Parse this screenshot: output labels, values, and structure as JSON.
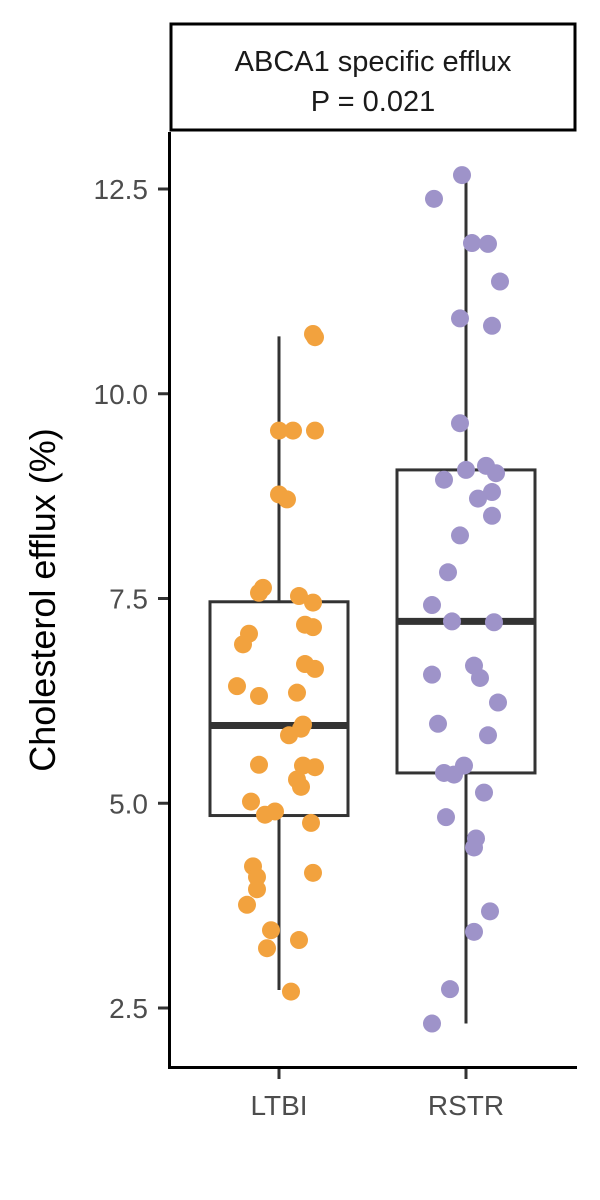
{
  "chart_data": {
    "type": "box",
    "strip": {
      "title": "ABCA1 specific efflux",
      "subtitle": "P = 0.021"
    },
    "ylabel": "Cholesterol efflux (%)",
    "xlabel": "",
    "ylim": [
      1.8,
      13.2
    ],
    "yticks": [
      {
        "value": 2.5,
        "label": "2.5"
      },
      {
        "value": 5.0,
        "label": "5.0"
      },
      {
        "value": 7.5,
        "label": "7.5"
      },
      {
        "value": 10.0,
        "label": "10.0"
      },
      {
        "value": 12.5,
        "label": "12.5"
      }
    ],
    "grid": false,
    "legend": "none",
    "categories": [
      "LTBI",
      "RSTR"
    ],
    "groups": [
      {
        "category": "LTBI",
        "color": "#F2A23E",
        "box": {
          "whisker_low": 2.72,
          "q1": 4.85,
          "median": 5.95,
          "q3": 7.46,
          "whisker_high": 10.7
        },
        "points": [
          10.73,
          10.69,
          9.55,
          9.55,
          9.55,
          8.77,
          8.71,
          7.63,
          7.57,
          7.53,
          7.45,
          7.18,
          7.15,
          7.07,
          6.94,
          6.7,
          6.64,
          6.43,
          6.35,
          6.31,
          5.96,
          5.91,
          5.83,
          5.47,
          5.46,
          5.44,
          5.29,
          5.2,
          5.02,
          4.9,
          4.86,
          4.76,
          4.23,
          4.15,
          4.1,
          3.95,
          3.76,
          3.45,
          3.33,
          3.23,
          2.7
        ]
      },
      {
        "category": "RSTR",
        "color": "#9E93C9",
        "box": {
          "whisker_low": 2.31,
          "q1": 5.37,
          "median": 7.22,
          "q3": 9.07,
          "whisker_high": 12.67
        },
        "points": [
          12.67,
          12.38,
          11.84,
          11.83,
          11.37,
          10.92,
          10.83,
          9.64,
          9.12,
          9.07,
          9.03,
          8.95,
          8.8,
          8.72,
          8.51,
          8.27,
          7.82,
          7.42,
          7.22,
          7.21,
          6.68,
          6.57,
          6.53,
          6.23,
          5.97,
          5.83,
          5.46,
          5.37,
          5.35,
          5.13,
          4.83,
          4.57,
          4.46,
          3.68,
          3.43,
          2.73,
          2.31
        ]
      }
    ]
  }
}
